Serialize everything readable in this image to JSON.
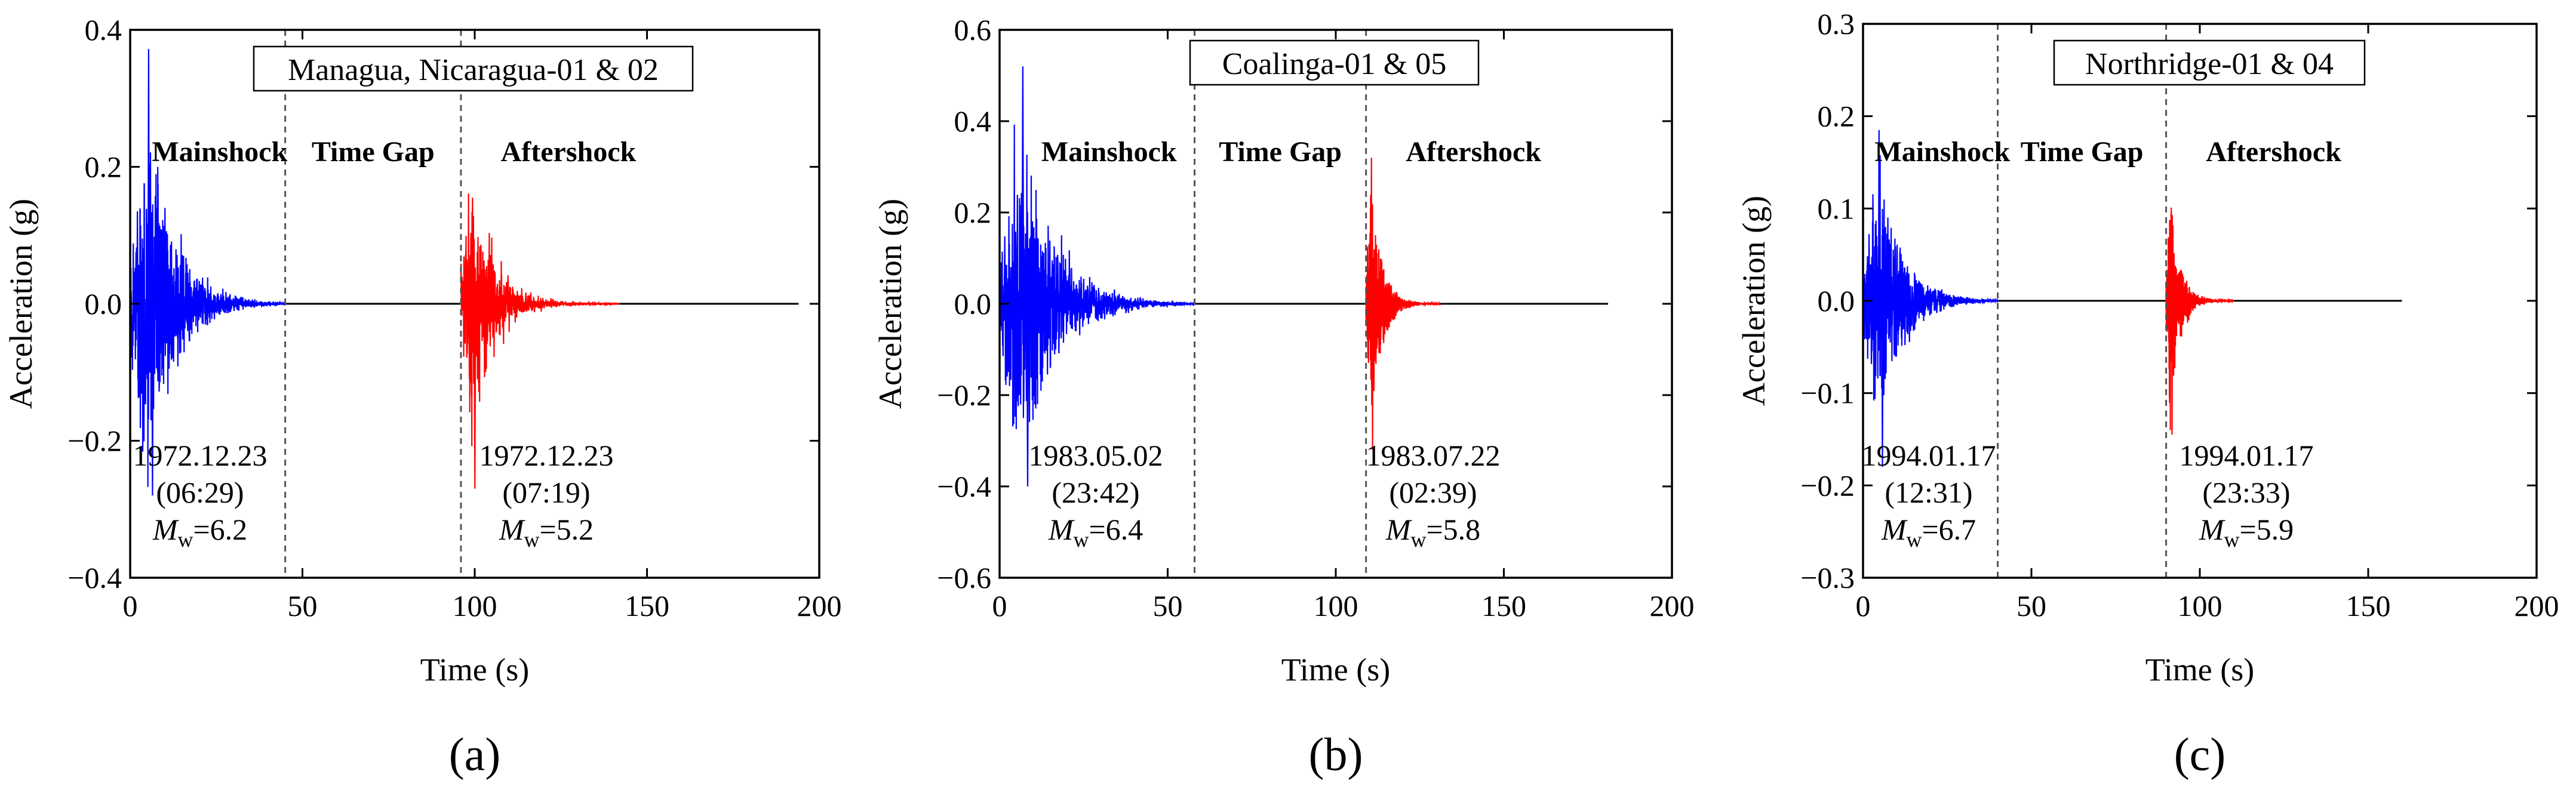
{
  "charts": [
    {
      "type": "line",
      "panel_label": "(a)",
      "title": "Managua, Nicaragua-01 & 02",
      "xlabel": "Time (s)",
      "ylabel": "Acceleration (g)",
      "xlim": [
        0,
        200
      ],
      "ylim": [
        -0.4,
        0.4
      ],
      "xticks": [
        "0",
        "50",
        "100",
        "150",
        "200"
      ],
      "yticks": [
        "−0.4",
        "−0.2",
        "0.0",
        "0.2",
        "0.4"
      ],
      "labels": {
        "mainshock": "Mainshock",
        "gap": "Time Gap",
        "aftershock": "Aftershock"
      },
      "gap_lines": [
        45,
        96
      ],
      "record_end": 194,
      "mainshock": {
        "start": 0,
        "end": 45,
        "peak_pos": 0.372,
        "peak_neg": -0.28,
        "color": "#0000ff"
      },
      "aftershock": {
        "start": 96,
        "end": 142,
        "peak_pos": 0.155,
        "peak_neg": -0.27,
        "color": "#ff0000"
      },
      "main_info": {
        "date": "1972.12.23",
        "time": "(06:29)",
        "mw_label": "M",
        "mw_sub": "w",
        "mw_value": "=6.2"
      },
      "after_info": {
        "date": "1972.12.23",
        "time": "(07:19)",
        "mw_label": "M",
        "mw_sub": "w",
        "mw_value": "=5.2"
      }
    },
    {
      "type": "line",
      "panel_label": "(b)",
      "title": "Coalinga-01 & 05",
      "xlabel": "Time (s)",
      "ylabel": "Acceleration (g)",
      "xlim": [
        0,
        200
      ],
      "ylim": [
        -0.6,
        0.6
      ],
      "xticks": [
        "0",
        "50",
        "100",
        "150",
        "200"
      ],
      "yticks": [
        "−0.6",
        "−0.4",
        "−0.2",
        "0.0",
        "0.2",
        "0.4",
        "0.6"
      ],
      "labels": {
        "mainshock": "Mainshock",
        "gap": "Time Gap",
        "aftershock": "Aftershock"
      },
      "gap_lines": [
        58,
        109
      ],
      "record_end": 181,
      "mainshock": {
        "start": 0,
        "end": 58,
        "peak_pos": 0.52,
        "peak_neg": -0.4,
        "color": "#0000ff"
      },
      "aftershock": {
        "start": 109,
        "end": 131,
        "peak_pos": 0.32,
        "peak_neg": -0.32,
        "color": "#ff0000"
      },
      "main_info": {
        "date": "1983.05.02",
        "time": "(23:42)",
        "mw_label": "M",
        "mw_sub": "w",
        "mw_value": "=6.4"
      },
      "after_info": {
        "date": "1983.07.22",
        "time": "(02:39)",
        "mw_label": "M",
        "mw_sub": "w",
        "mw_value": "=5.8"
      }
    },
    {
      "type": "line",
      "panel_label": "(c)",
      "title": "Northridge-01 & 04",
      "xlabel": "Time (s)",
      "ylabel": "Acceleration (g)",
      "xlim": [
        0,
        200
      ],
      "ylim": [
        -0.3,
        0.3
      ],
      "xticks": [
        "0",
        "50",
        "100",
        "150",
        "200"
      ],
      "yticks": [
        "−0.3",
        "−0.2",
        "−0.1",
        "0.0",
        "0.1",
        "0.2",
        "0.3"
      ],
      "labels": {
        "mainshock": "Mainshock",
        "gap": "Time Gap",
        "aftershock": "Aftershock"
      },
      "gap_lines": [
        40,
        90
      ],
      "record_end": 160,
      "mainshock": {
        "start": 0,
        "end": 40,
        "peak_pos": 0.185,
        "peak_neg": -0.18,
        "color": "#0000ff"
      },
      "aftershock": {
        "start": 90,
        "end": 110,
        "peak_pos": 0.095,
        "peak_neg": -0.145,
        "color": "#ff0000"
      },
      "main_info": {
        "date": "1994.01.17",
        "time": "(12:31)",
        "mw_label": "M",
        "mw_sub": "w",
        "mw_value": "=6.7"
      },
      "after_info": {
        "date": "1994.01.17",
        "time": "(23:33)",
        "mw_label": "M",
        "mw_sub": "w",
        "mw_value": "=5.9"
      }
    }
  ]
}
